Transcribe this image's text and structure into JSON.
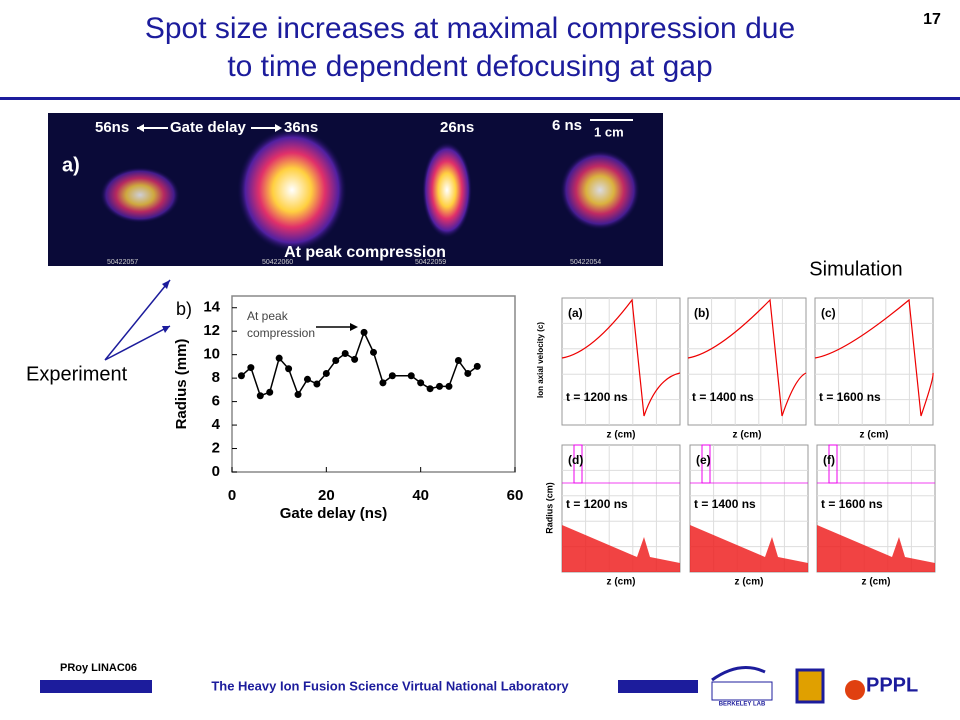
{
  "slide": {
    "title": [
      "Spot size increases at maximal compression due",
      "to time dependent defocusing at gap"
    ],
    "page_number": "17",
    "author": "PRoy LINAC06",
    "footer": "The Heavy Ion Fusion Science Virtual National Laboratory",
    "experiment_label": "Experiment",
    "simulation_label": "Simulation",
    "image_panel": {
      "label": "a)",
      "delays": [
        "56ns",
        "36ns",
        "26ns",
        "6 ns"
      ],
      "gate_delay": "Gate delay",
      "scale": "1 cm",
      "caption": "At peak compression",
      "shot_ids": [
        "50422057",
        "50422060",
        "50422059",
        "50422054"
      ]
    },
    "simulation": {
      "velocity_axis": "Ion axial velocity (c)",
      "radius_axis": "Radius (cm)",
      "z_axis": "z (cm)",
      "panels": [
        {
          "label": "(a)",
          "time": "t = 1200 ns"
        },
        {
          "label": "(b)",
          "time": "t = 1400 ns"
        },
        {
          "label": "(c)",
          "time": "t = 1600 ns"
        },
        {
          "label": "(d)",
          "time": "t = 1200 ns"
        },
        {
          "label": "(e)",
          "time": "t = 1400 ns"
        },
        {
          "label": "(f)",
          "time": "t = 1600 ns"
        }
      ]
    },
    "logos": {
      "berkeley": "BERKELEY LAB",
      "pppl": "PPPL"
    }
  },
  "chart_data": {
    "type": "line",
    "panel_label": "b)",
    "annotation": [
      "At peak",
      "compression"
    ],
    "xlabel": "Gate delay (ns)",
    "ylabel": "Radius (mm)",
    "x": [
      2,
      4,
      6,
      8,
      10,
      12,
      14,
      16,
      18,
      20,
      22,
      24,
      26,
      28,
      30,
      32,
      34,
      38,
      40,
      42,
      44,
      46,
      48,
      50,
      52
    ],
    "series": [
      {
        "name": "Radius",
        "color": "#000000",
        "values": [
          8.2,
          8.9,
          6.5,
          6.8,
          9.7,
          8.8,
          6.6,
          7.9,
          7.5,
          8.4,
          9.5,
          10.1,
          9.6,
          11.9,
          10.2,
          7.6,
          8.2,
          8.2,
          7.6,
          7.1,
          7.3,
          7.3,
          9.5,
          8.4,
          9.0
        ]
      }
    ],
    "xlim": [
      0,
      60
    ],
    "xticks": [
      0,
      20,
      40,
      60
    ],
    "ylim": [
      0,
      15
    ],
    "yticks": [
      0,
      2,
      4,
      6,
      8,
      10,
      12,
      14
    ]
  }
}
